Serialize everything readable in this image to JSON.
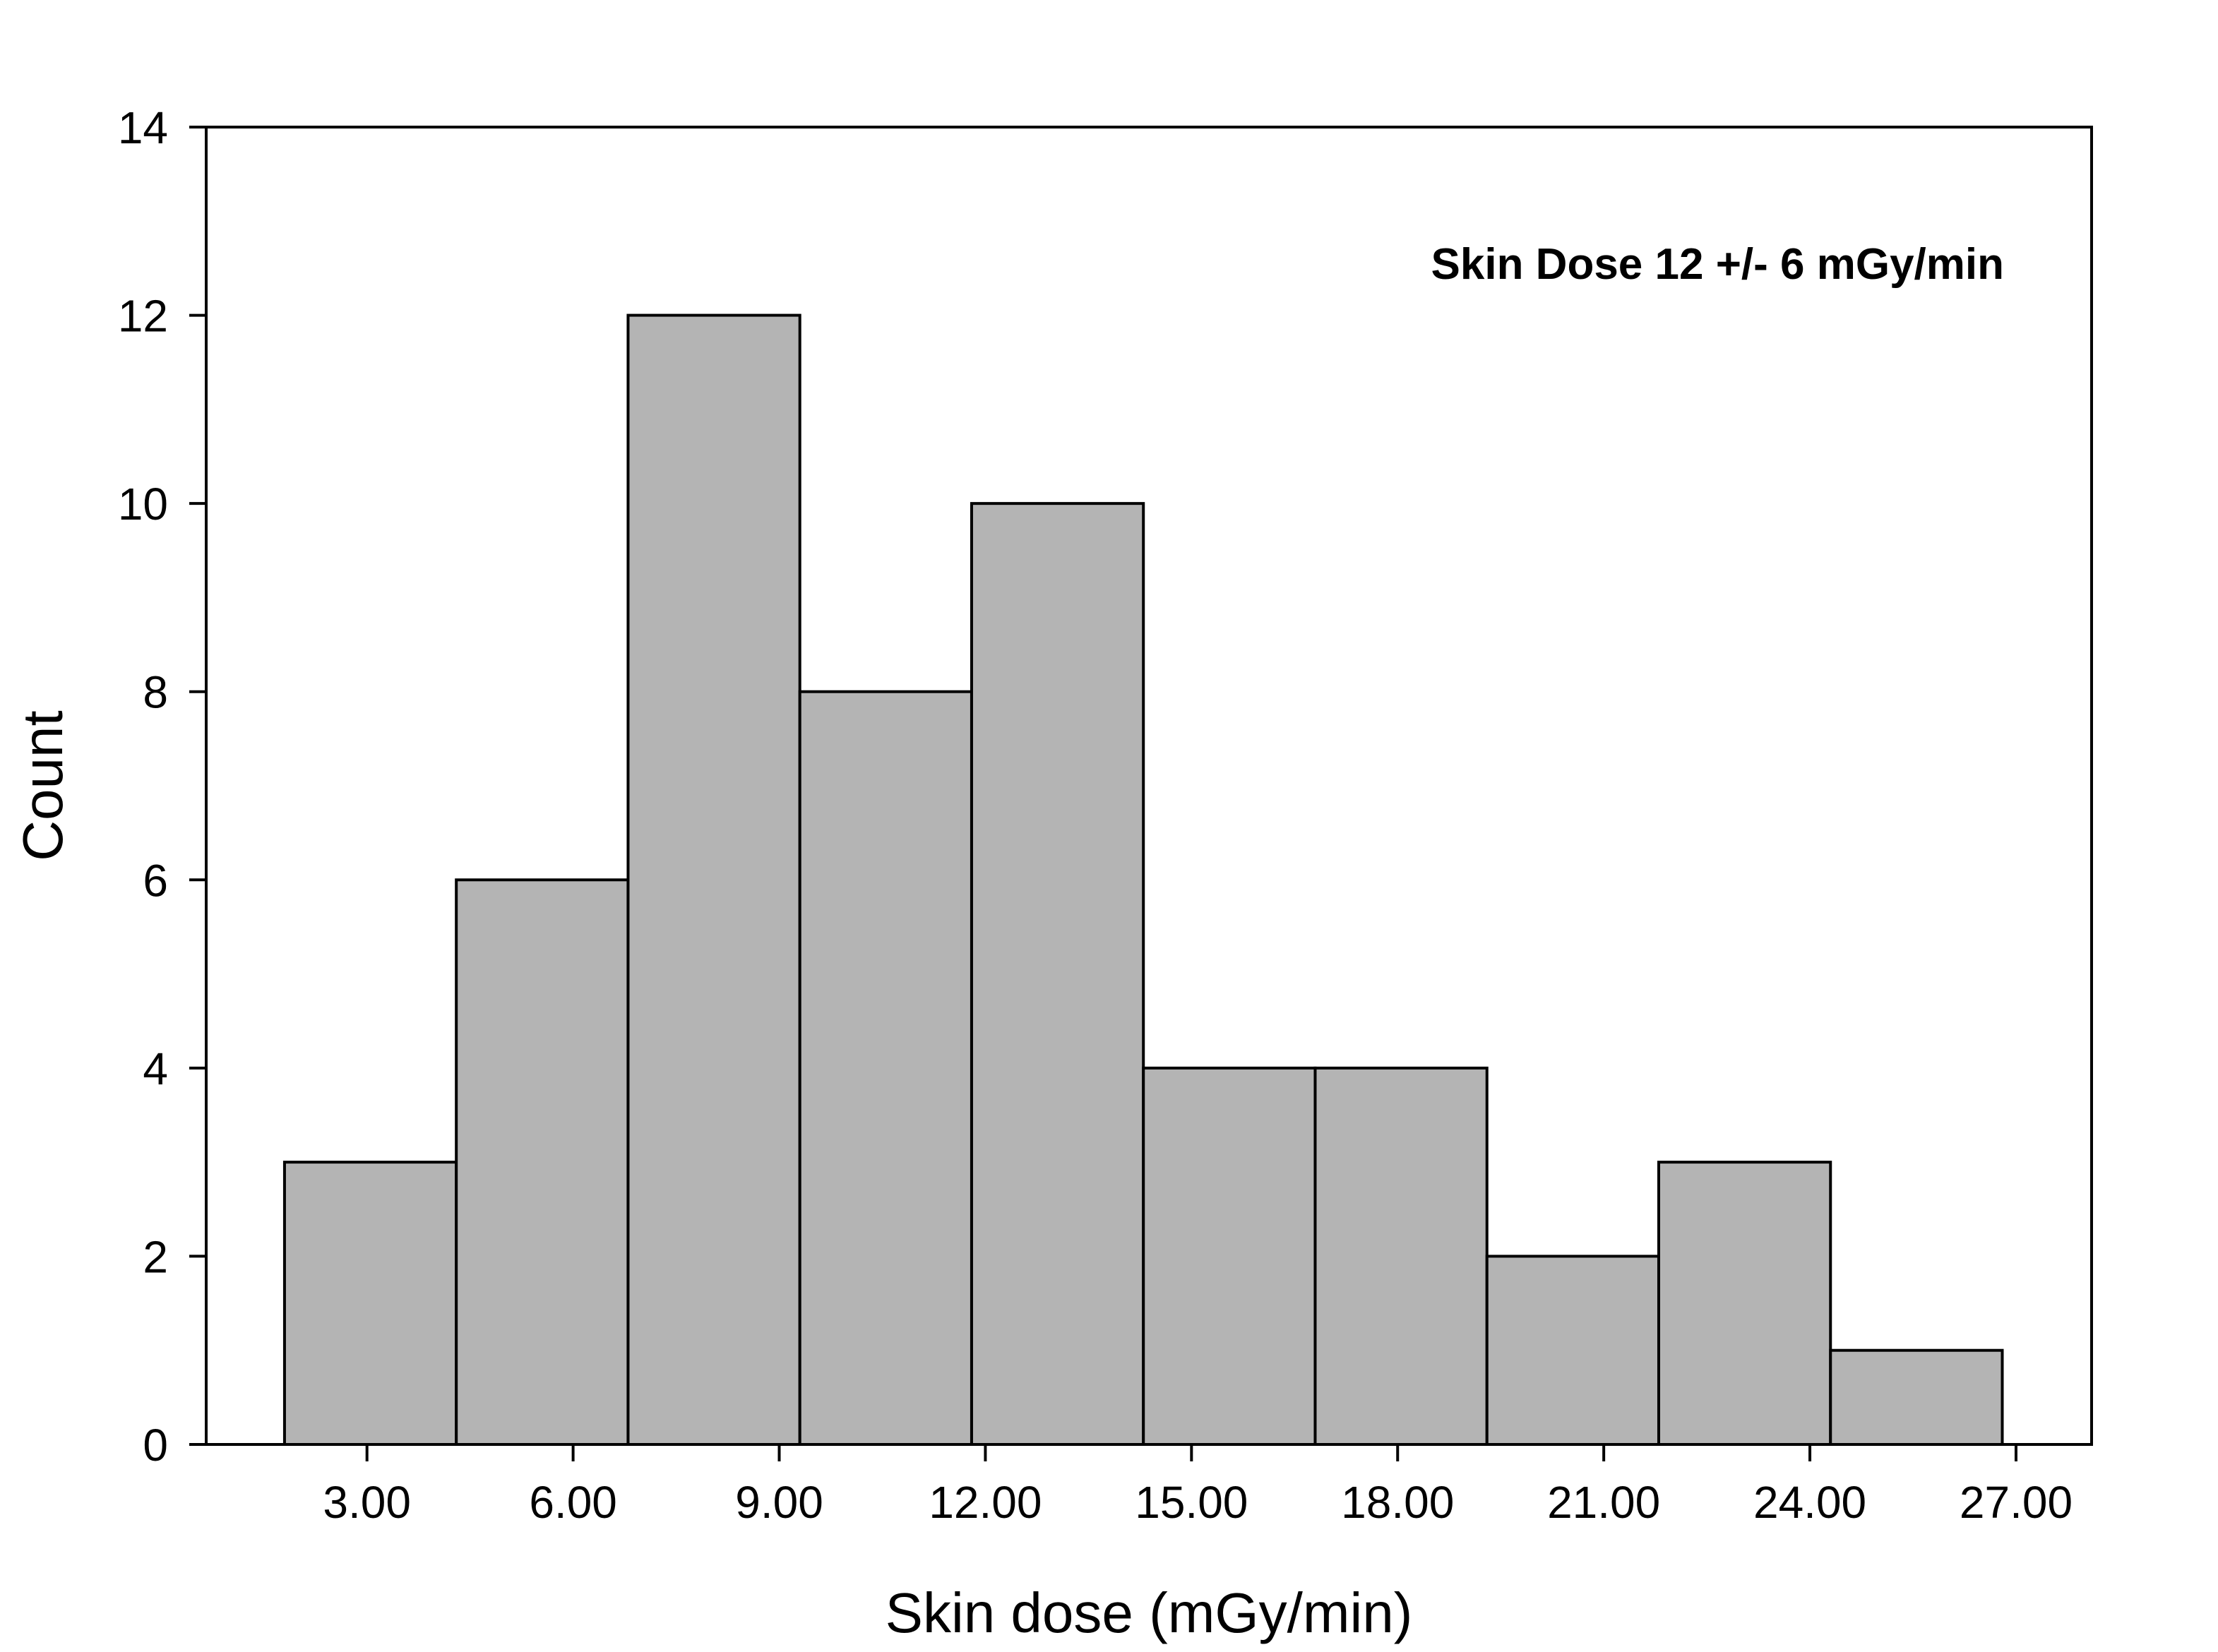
{
  "chart_data": {
    "type": "bar",
    "title": "",
    "xlabel": "Skin dose (mGy/min)",
    "ylabel": "Count",
    "annotation": "Skin Dose 12 +/- 6 mGy/min",
    "bins": [
      {
        "x0": 1.8,
        "x1": 4.3,
        "count": 3
      },
      {
        "x0": 4.3,
        "x1": 6.8,
        "count": 6
      },
      {
        "x0": 6.8,
        "x1": 9.3,
        "count": 12
      },
      {
        "x0": 9.3,
        "x1": 11.8,
        "count": 8
      },
      {
        "x0": 11.8,
        "x1": 14.3,
        "count": 10
      },
      {
        "x0": 14.3,
        "x1": 16.8,
        "count": 4
      },
      {
        "x0": 16.8,
        "x1": 19.3,
        "count": 4
      },
      {
        "x0": 19.3,
        "x1": 21.8,
        "count": 2
      },
      {
        "x0": 21.8,
        "x1": 24.3,
        "count": 3
      },
      {
        "x0": 24.3,
        "x1": 26.8,
        "count": 1
      }
    ],
    "xlim": [
      0.66,
      28.1
    ],
    "ylim": [
      0,
      14
    ],
    "xticks": [
      3,
      6,
      9,
      12,
      15,
      18,
      21,
      24,
      27
    ],
    "xtick_labels": [
      "3.00",
      "6.00",
      "9.00",
      "12.00",
      "15.00",
      "18.00",
      "21.00",
      "24.00",
      "27.00"
    ],
    "yticks": [
      0,
      2,
      4,
      6,
      8,
      10,
      12,
      14
    ],
    "ytick_labels": [
      "0",
      "2",
      "4",
      "6",
      "8",
      "10",
      "12",
      "14"
    ],
    "bar_color": "#b4b4b4",
    "edge_color": "#000000",
    "grid": false,
    "legend": "none"
  }
}
